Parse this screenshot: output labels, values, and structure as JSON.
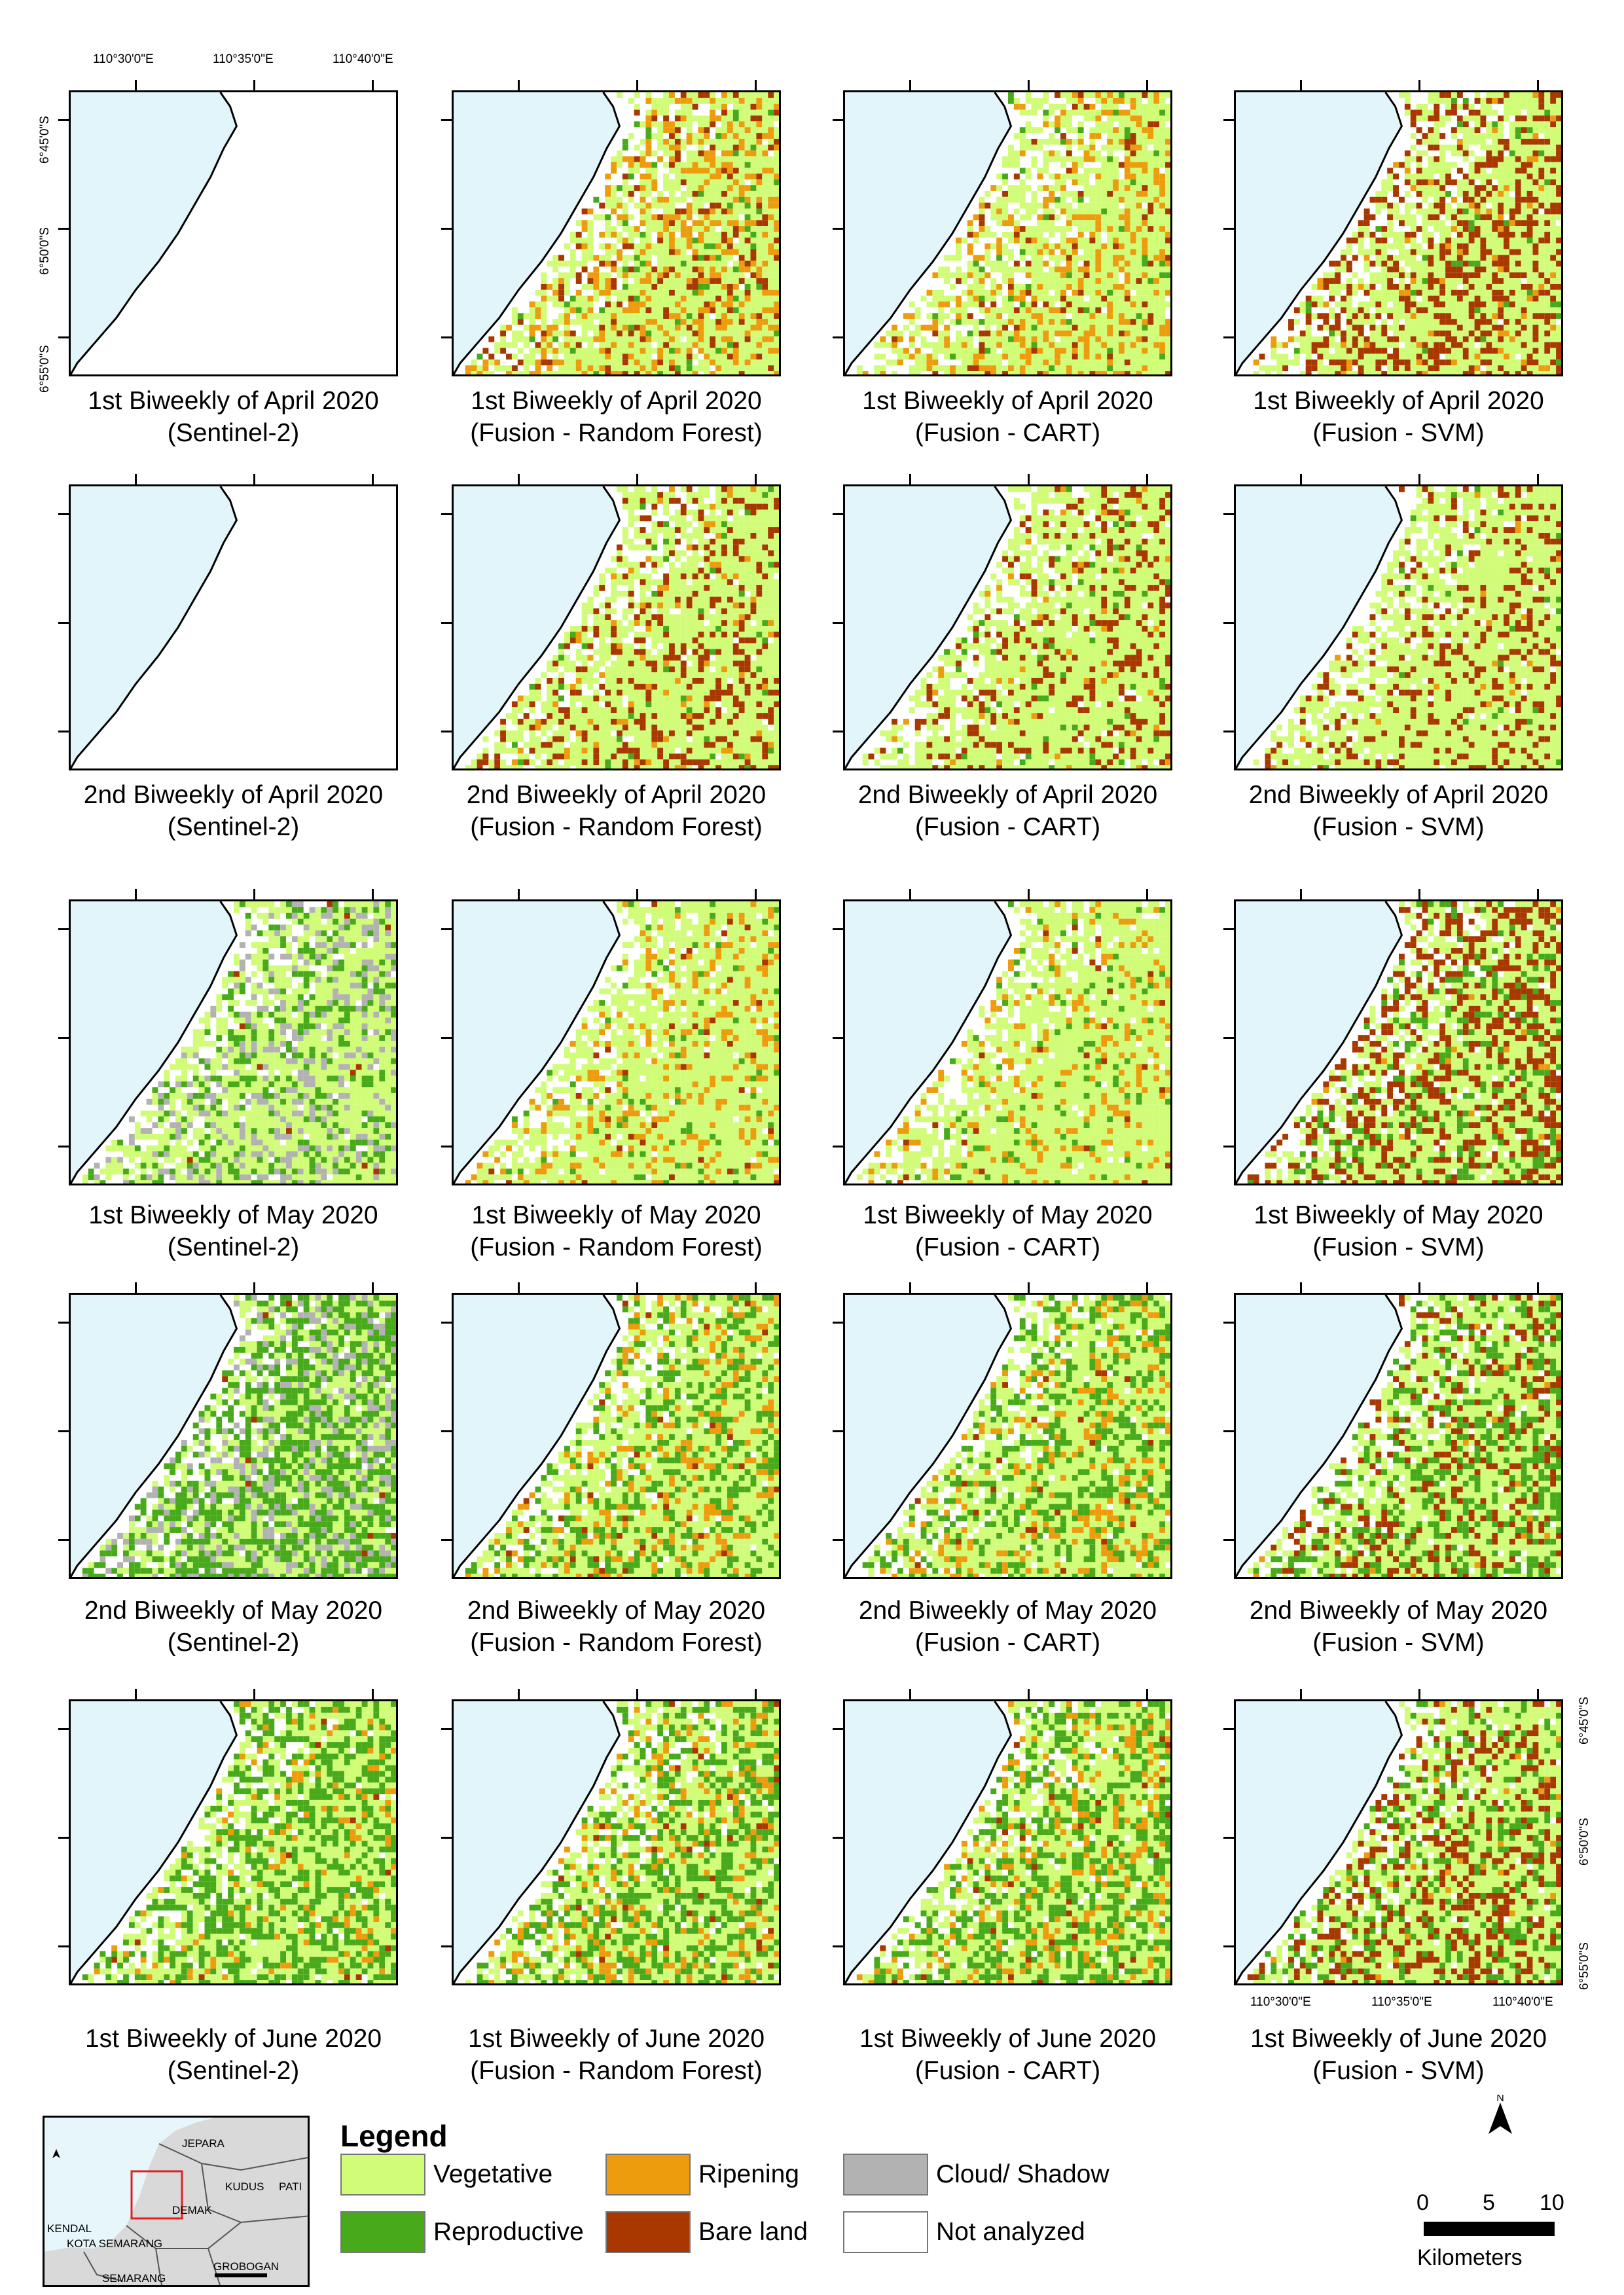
{
  "coords": {
    "lon": [
      "110°30'0\"E",
      "110°35'0\"E",
      "110°40'0\"E"
    ],
    "lat": [
      "6°45'0\"S",
      "6°50'0\"S",
      "6°55'0\"S"
    ]
  },
  "rows": [
    {
      "period": "1st Biweekly of April 2020",
      "panels": [
        {
          "caption1": "1st Biweekly of April 2020",
          "caption2": "(Sentinel-2)",
          "method": "s2",
          "veg": 0,
          "rep": 0,
          "rip": 0,
          "bare": 0,
          "cloud": 0
        },
        {
          "caption1": "1st Biweekly of April 2020",
          "caption2": "(Fusion - Random Forest)",
          "method": "rf",
          "veg": 0.55,
          "rep": 0.04,
          "rip": 0.22,
          "bare": 0.1,
          "cloud": 0
        },
        {
          "caption1": "1st Biweekly of April 2020",
          "caption2": "(Fusion - CART)",
          "method": "cart",
          "veg": 0.6,
          "rep": 0.03,
          "rip": 0.2,
          "bare": 0.05,
          "cloud": 0
        },
        {
          "caption1": "1st Biweekly of April 2020",
          "caption2": "(Fusion - SVM)",
          "method": "svm",
          "veg": 0.55,
          "rep": 0.02,
          "rip": 0.05,
          "bare": 0.33,
          "cloud": 0
        }
      ]
    },
    {
      "period": "2nd Biweekly of April 2020",
      "panels": [
        {
          "caption1": "2nd Biweekly of April 2020",
          "caption2": "(Sentinel-2)",
          "method": "s2",
          "veg": 0,
          "rep": 0,
          "rip": 0,
          "bare": 0,
          "cloud": 0
        },
        {
          "caption1": "2nd Biweekly of April 2020",
          "caption2": "(Fusion - Random Forest)",
          "method": "rf",
          "veg": 0.68,
          "rep": 0.03,
          "rip": 0.04,
          "bare": 0.2,
          "cloud": 0
        },
        {
          "caption1": "2nd Biweekly of April 2020",
          "caption2": "(Fusion - CART)",
          "method": "cart",
          "veg": 0.7,
          "rep": 0.03,
          "rip": 0.03,
          "bare": 0.18,
          "cloud": 0
        },
        {
          "caption1": "2nd Biweekly of April 2020",
          "caption2": "(Fusion - SVM)",
          "method": "svm",
          "veg": 0.72,
          "rep": 0.02,
          "rip": 0.01,
          "bare": 0.2,
          "cloud": 0
        }
      ]
    },
    {
      "period": "1st Biweekly of May 2020",
      "panels": [
        {
          "caption1": "1st Biweekly of May 2020",
          "caption2": "(Sentinel-2)",
          "method": "s2",
          "veg": 0.55,
          "rep": 0.18,
          "rip": 0,
          "bare": 0.01,
          "cloud": 0.2
        },
        {
          "caption1": "1st Biweekly of May 2020",
          "caption2": "(Fusion - Random Forest)",
          "method": "rf",
          "veg": 0.72,
          "rep": 0.04,
          "rip": 0.16,
          "bare": 0.02,
          "cloud": 0
        },
        {
          "caption1": "1st Biweekly of May 2020",
          "caption2": "(Fusion - CART)",
          "method": "cart",
          "veg": 0.74,
          "rep": 0.05,
          "rip": 0.13,
          "bare": 0.02,
          "cloud": 0
        },
        {
          "caption1": "1st Biweekly of May 2020",
          "caption2": "(Fusion - SVM)",
          "method": "svm",
          "veg": 0.5,
          "rep": 0.14,
          "rip": 0.01,
          "bare": 0.33,
          "cloud": 0
        }
      ]
    },
    {
      "period": "2nd Biweekly of May 2020",
      "panels": [
        {
          "caption1": "2nd Biweekly of May 2020",
          "caption2": "(Sentinel-2)",
          "method": "s2",
          "veg": 0.35,
          "rep": 0.42,
          "rip": 0,
          "bare": 0.01,
          "cloud": 0.2
        },
        {
          "caption1": "2nd Biweekly of May 2020",
          "caption2": "(Fusion - Random Forest)",
          "method": "rf",
          "veg": 0.55,
          "rep": 0.25,
          "rip": 0.15,
          "bare": 0.02,
          "cloud": 0
        },
        {
          "caption1": "2nd Biweekly of May 2020",
          "caption2": "(Fusion - CART)",
          "method": "cart",
          "veg": 0.55,
          "rep": 0.27,
          "rip": 0.14,
          "bare": 0.02,
          "cloud": 0
        },
        {
          "caption1": "2nd Biweekly of May 2020",
          "caption2": "(Fusion - SVM)",
          "method": "svm",
          "veg": 0.52,
          "rep": 0.24,
          "rip": 0.01,
          "bare": 0.2,
          "cloud": 0
        }
      ]
    },
    {
      "period": "1st Biweekly of June 2020",
      "panels": [
        {
          "caption1": "1st Biweekly of June 2020",
          "caption2": "(Sentinel-2)",
          "method": "s2",
          "veg": 0.48,
          "rep": 0.4,
          "rip": 0.09,
          "bare": 0.01,
          "cloud": 0
        },
        {
          "caption1": "1st Biweekly of June 2020",
          "caption2": "(Fusion - Random Forest)",
          "method": "rf",
          "veg": 0.48,
          "rep": 0.32,
          "rip": 0.16,
          "bare": 0.02,
          "cloud": 0
        },
        {
          "caption1": "1st Biweekly of June 2020",
          "caption2": "(Fusion - CART)",
          "method": "cart",
          "veg": 0.48,
          "rep": 0.34,
          "rip": 0.15,
          "bare": 0.02,
          "cloud": 0
        },
        {
          "caption1": "1st Biweekly of June 2020",
          "caption2": "(Fusion - SVM)",
          "method": "svm",
          "veg": 0.52,
          "rep": 0.18,
          "rip": 0.02,
          "bare": 0.26,
          "cloud": 0
        }
      ]
    }
  ],
  "legend": {
    "title": "Legend",
    "items": [
      {
        "label": "Vegetative",
        "color": "#d1fc77"
      },
      {
        "label": "Reproductive",
        "color": "#48aa1b"
      },
      {
        "label": "Ripening",
        "color": "#ec9c0c"
      },
      {
        "label": "Bare land",
        "color": "#a83800"
      },
      {
        "label": "Cloud/ Shadow",
        "color": "#b2b2b2"
      },
      {
        "label": "Not analyzed",
        "color": "#ffffff"
      }
    ]
  },
  "colors": {
    "sea": "#e1f5fb",
    "coast": "#000000",
    "land": "#ffffff",
    "inset_land": "#d9d9d9",
    "inset_border": "#555555",
    "aoi": "#e02020"
  },
  "inset": {
    "labels": [
      "JEPARA",
      "KUDUS",
      "PATI",
      "DEMAK",
      "KENDAL",
      "KOTA SEMARANG",
      "SEMARANG",
      "GROBOGAN"
    ]
  },
  "scale": {
    "ticks": [
      "0",
      "5",
      "10"
    ],
    "unit": "Kilometers"
  },
  "north": {
    "label": "N"
  }
}
